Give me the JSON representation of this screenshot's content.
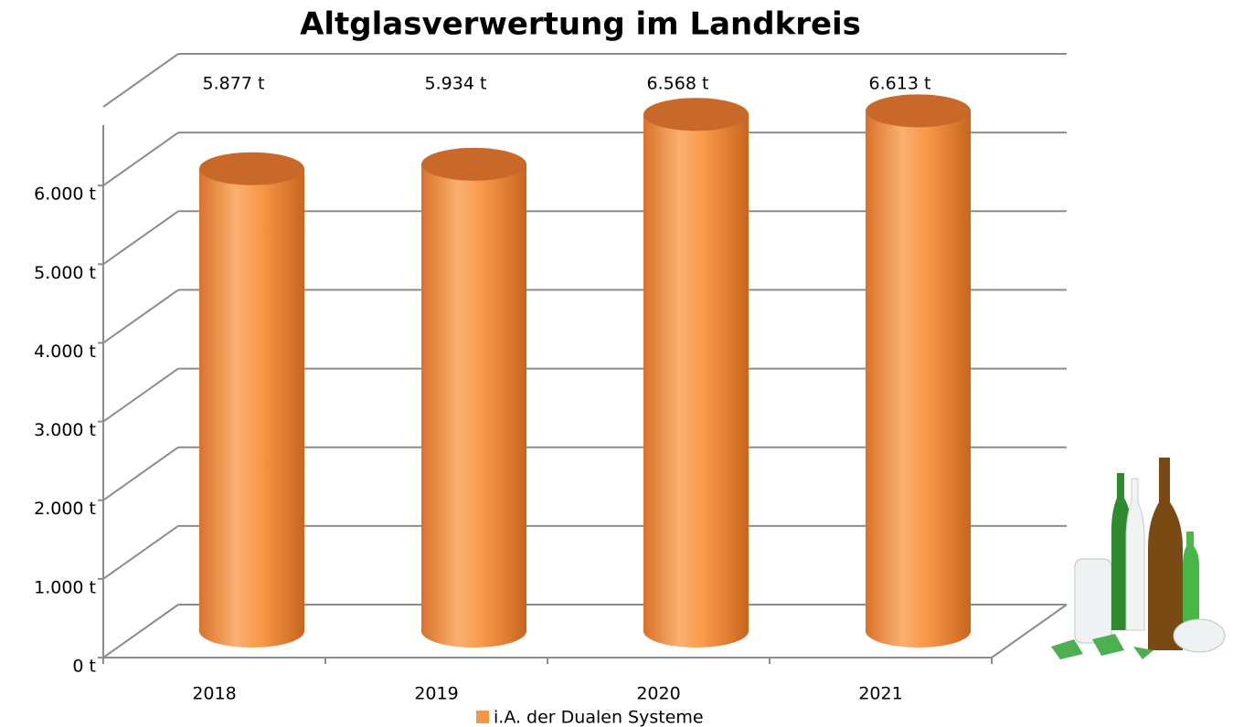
{
  "chart_data": {
    "type": "cylinder-bar",
    "title": "Altglasverwertung im Landkreis",
    "categories": [
      "2018",
      "2019",
      "2020",
      "2021"
    ],
    "series": [
      {
        "name": "i.A. der Dualen Systeme",
        "color": "#F79646",
        "values": [
          5877,
          5934,
          6568,
          6613
        ],
        "value_labels": [
          "5.877 t",
          "5.934 t",
          "6.568 t",
          "6.613 t"
        ]
      }
    ],
    "ylim": [
      0,
      7000
    ],
    "yticks": [
      {
        "value": 0,
        "label": "0 t"
      },
      {
        "value": 1000,
        "label": "1.000 t"
      },
      {
        "value": 2000,
        "label": "2.000 t"
      },
      {
        "value": 3000,
        "label": "3.000 t"
      },
      {
        "value": 4000,
        "label": "4.000 t"
      },
      {
        "value": 5000,
        "label": "5.000 t"
      },
      {
        "value": 6000,
        "label": "6.000 t"
      }
    ],
    "grid": true
  }
}
